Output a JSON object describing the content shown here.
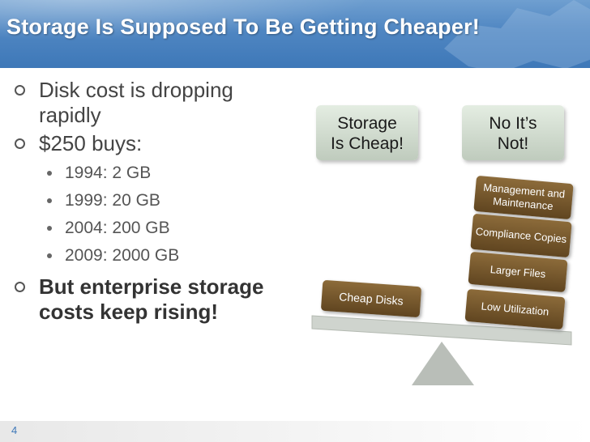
{
  "slide": {
    "title": "Storage Is Supposed To Be Getting Cheaper!",
    "page_number": "4"
  },
  "bullets": {
    "b1_line1": "Disk cost is dropping",
    "b1_line2": "rapidly",
    "b2": "$250 buys:",
    "sub": [
      "1994: 2 GB",
      "1999: 20 GB",
      "2004: 200 GB",
      "2009: 2000 GB"
    ],
    "b3_line1": "But enterprise storage",
    "b3_line2": "costs keep rising!"
  },
  "diagram": {
    "claim_left_line1": "Storage",
    "claim_left_line2": "Is Cheap!",
    "claim_right_line1": "No It’s",
    "claim_right_line2": "Not!",
    "left_weight": "Cheap Disks",
    "right_weights": [
      "Management and Maintenance",
      "Compliance Copies",
      "Larger Files",
      "Low Utilization"
    ]
  },
  "colors": {
    "title_bar": "#3e78b8",
    "callout_green": "#bfcbbd",
    "weight_brown": "#604520",
    "balance_gray": "#c9cec8"
  }
}
